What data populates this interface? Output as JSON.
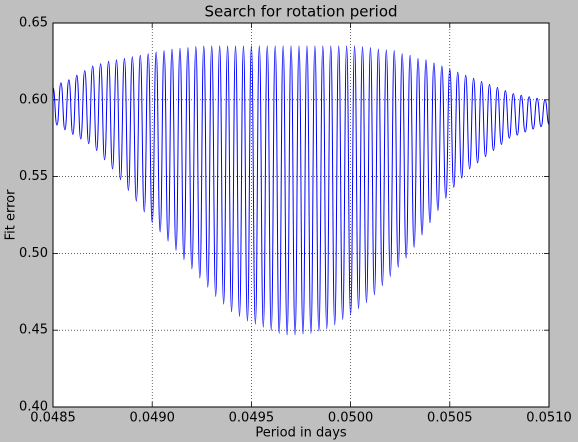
{
  "chart_data": {
    "type": "line",
    "title": "Search for rotation period",
    "x_label": "Period in days",
    "y_label": "Fit error",
    "x": [
      0.0485,
      0.04852,
      0.04854,
      0.04856,
      0.04858,
      0.0486,
      0.04862,
      0.04864,
      0.04866,
      0.04868,
      0.0487,
      0.04872,
      0.04874,
      0.04876,
      0.04878,
      0.0488,
      0.04882,
      0.04884,
      0.04886,
      0.04888,
      0.0489,
      0.04892,
      0.04894,
      0.04896,
      0.04898,
      0.049,
      0.04902,
      0.04904,
      0.04906,
      0.04908,
      0.0491,
      0.04912,
      0.04914,
      0.04916,
      0.04918,
      0.0492,
      0.04922,
      0.04924,
      0.04926,
      0.04928,
      0.0493,
      0.04932,
      0.04934,
      0.04936,
      0.04938,
      0.0494,
      0.04942,
      0.04944,
      0.04946,
      0.04948,
      0.0495,
      0.04952,
      0.04954,
      0.04956,
      0.04958,
      0.0496,
      0.04962,
      0.04964,
      0.04966,
      0.04968,
      0.0497,
      0.04972,
      0.04974,
      0.04976,
      0.04978,
      0.0498,
      0.04982,
      0.04984,
      0.04986,
      0.04988,
      0.0499,
      0.04992,
      0.04994,
      0.04996,
      0.04998,
      0.05,
      0.05002,
      0.05004,
      0.05006,
      0.05008,
      0.0501,
      0.05012,
      0.05014,
      0.05016,
      0.05018,
      0.0502,
      0.05022,
      0.05024,
      0.05026,
      0.05028,
      0.0503,
      0.05032,
      0.05034,
      0.05036,
      0.05038,
      0.0504,
      0.05042,
      0.05044,
      0.05046,
      0.05048,
      0.0505,
      0.05052,
      0.05054,
      0.05056,
      0.05058,
      0.0506,
      0.05062,
      0.05064,
      0.05066,
      0.05068,
      0.0507,
      0.05072,
      0.05074,
      0.05076,
      0.05078,
      0.0508,
      0.05082,
      0.05084,
      0.05086,
      0.05088,
      0.0509,
      0.05092,
      0.05094,
      0.05096,
      0.05098,
      0.051
    ],
    "series": [
      {
        "color": "#0000ff",
        "values": [
          0.608,
          0.5835,
          0.611,
          0.5805,
          0.613,
          0.5775,
          0.616,
          0.5745,
          0.619,
          0.5715,
          0.622,
          0.567,
          0.6235,
          0.561,
          0.625,
          0.555,
          0.626,
          0.548,
          0.627,
          0.541,
          0.628,
          0.534,
          0.629,
          0.527,
          0.63,
          0.52,
          0.631,
          0.514,
          0.632,
          0.508,
          0.633,
          0.502,
          0.6335,
          0.496,
          0.634,
          0.49,
          0.6345,
          0.484,
          0.635,
          0.478,
          0.635,
          0.472,
          0.635,
          0.467,
          0.635,
          0.462,
          0.635,
          0.459,
          0.635,
          0.456,
          0.635,
          0.454,
          0.635,
          0.452,
          0.635,
          0.45,
          0.635,
          0.448,
          0.635,
          0.447,
          0.635,
          0.447,
          0.635,
          0.4475,
          0.635,
          0.448,
          0.635,
          0.4495,
          0.635,
          0.451,
          0.635,
          0.4535,
          0.635,
          0.457,
          0.635,
          0.46,
          0.635,
          0.464,
          0.6345,
          0.468,
          0.634,
          0.473,
          0.633,
          0.479,
          0.6325,
          0.485,
          0.632,
          0.491,
          0.63,
          0.497,
          0.629,
          0.504,
          0.627,
          0.512,
          0.626,
          0.52,
          0.624,
          0.528,
          0.622,
          0.536,
          0.62,
          0.543,
          0.618,
          0.549,
          0.616,
          0.555,
          0.614,
          0.559,
          0.612,
          0.563,
          0.61,
          0.567,
          0.608,
          0.571,
          0.606,
          0.575,
          0.604,
          0.577,
          0.603,
          0.579,
          0.602,
          0.581,
          0.601,
          0.5825,
          0.6,
          0.584
        ]
      }
    ],
    "xlim": [
      0.0485,
      0.051
    ],
    "xticks": [
      {
        "value": 0.0485,
        "label": "0.0485"
      },
      {
        "value": 0.049,
        "label": "0.0490"
      },
      {
        "value": 0.0495,
        "label": "0.0495"
      },
      {
        "value": 0.05,
        "label": "0.0500"
      },
      {
        "value": 0.0505,
        "label": "0.0505"
      },
      {
        "value": 0.051,
        "label": "0.0510"
      }
    ],
    "ylim": [
      0.4,
      0.65
    ],
    "yticks": [
      {
        "value": 0.4,
        "label": "0.40"
      },
      {
        "value": 0.45,
        "label": "0.45"
      },
      {
        "value": 0.5,
        "label": "0.50"
      },
      {
        "value": 0.55,
        "label": "0.55"
      },
      {
        "value": 0.6,
        "label": "0.60"
      },
      {
        "value": 0.65,
        "label": "0.65"
      }
    ],
    "grid": true
  }
}
